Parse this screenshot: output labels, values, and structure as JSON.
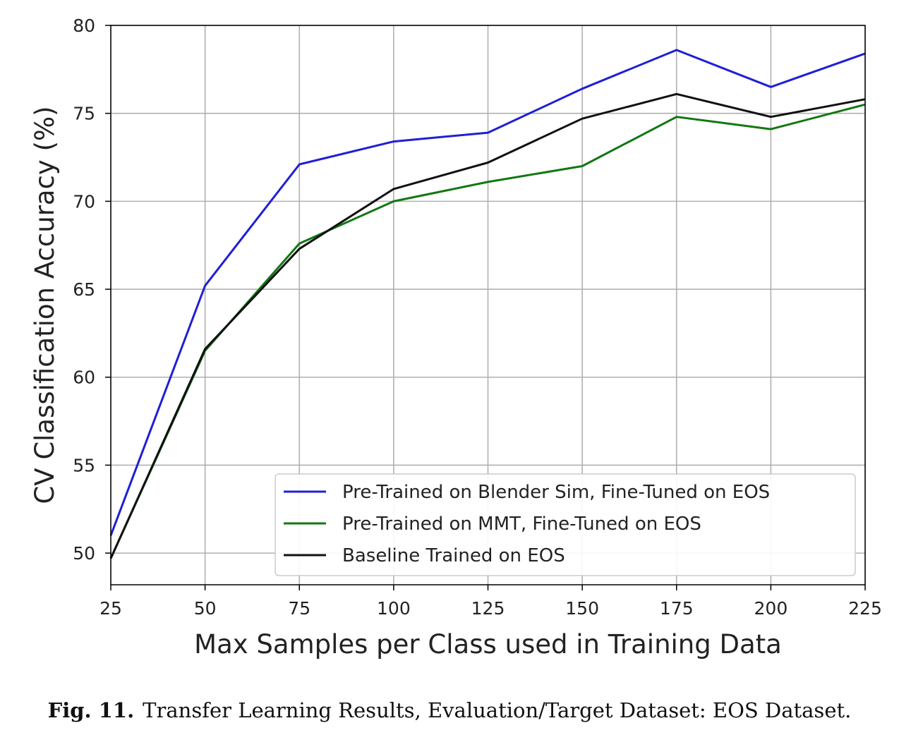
{
  "chart_data": {
    "type": "line",
    "title": "",
    "xlabel": "Max Samples per Class used in Training Data",
    "ylabel": "CV Classification Accuracy (%)",
    "xlim": [
      25,
      225
    ],
    "ylim": [
      48.2,
      80
    ],
    "xticks": [
      25,
      50,
      75,
      100,
      125,
      150,
      175,
      200,
      225
    ],
    "yticks": [
      50,
      55,
      60,
      65,
      70,
      75,
      80
    ],
    "grid": true,
    "legend_position": "lower-right",
    "x": [
      25,
      50,
      75,
      100,
      125,
      150,
      175,
      200,
      225
    ],
    "series": [
      {
        "name": "Pre-Trained on Blender Sim, Fine-Tuned on EOS",
        "color": "#1f1fd6",
        "values": [
          51.0,
          65.2,
          72.1,
          73.4,
          73.9,
          76.4,
          78.6,
          76.5,
          78.4
        ]
      },
      {
        "name": "Pre-Trained on MMT, Fine-Tuned on EOS",
        "color": "#127712",
        "values": [
          49.7,
          61.5,
          67.6,
          70.0,
          71.1,
          72.0,
          74.8,
          74.1,
          75.5
        ]
      },
      {
        "name": "Baseline Trained on EOS",
        "color": "#111111",
        "values": [
          49.7,
          61.6,
          67.3,
          70.7,
          72.2,
          74.7,
          76.1,
          74.8,
          75.8
        ]
      }
    ]
  },
  "caption": {
    "label": "Fig. 11.",
    "text": "Transfer Learning Results, Evaluation/Target Dataset: EOS Dataset."
  }
}
